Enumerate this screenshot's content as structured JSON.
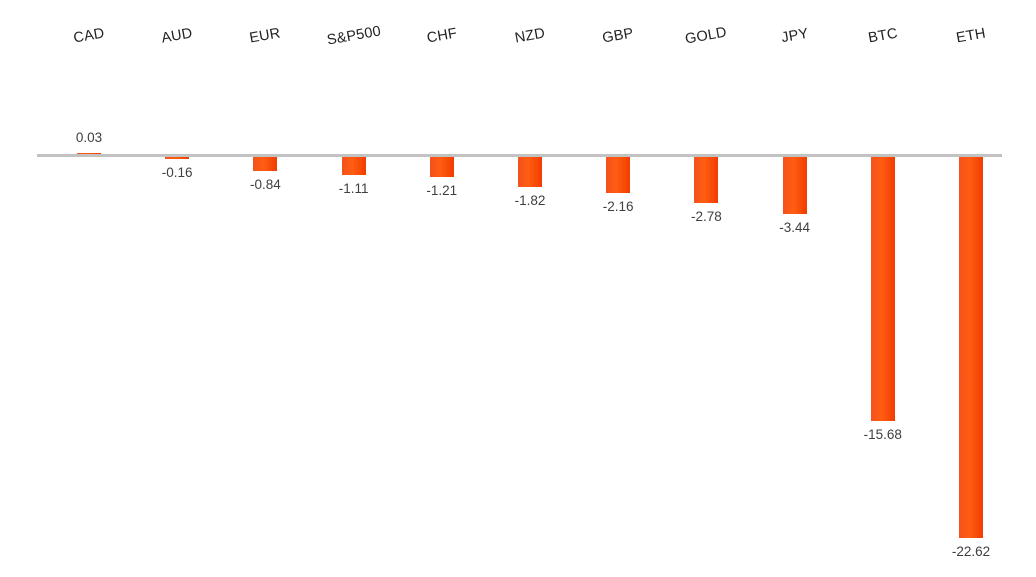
{
  "chart_data": {
    "type": "bar",
    "categories": [
      "CAD",
      "AUD",
      "EUR",
      "S&P500",
      "CHF",
      "NZD",
      "GBP",
      "GOLD",
      "JPY",
      "BTC",
      "ETH"
    ],
    "values": [
      0.03,
      -0.16,
      -0.84,
      -1.11,
      -1.21,
      -1.82,
      -2.16,
      -2.78,
      -3.44,
      -15.68,
      -22.62
    ],
    "data_labels": [
      "0.03",
      "-0.16",
      "-0.84",
      "-1.11",
      "-1.21",
      "-1.82",
      "-2.16",
      "-2.78",
      "-3.44",
      "-15.68",
      "-22.62"
    ],
    "title": "",
    "xlabel": "",
    "ylabel": "",
    "ylim": [
      -23.5,
      1
    ],
    "grid": false,
    "legend": "none",
    "category_axis_position": "top",
    "category_label_rotation_deg": -10,
    "colors": {
      "bar_gradient": [
        "#f4511d",
        "#ff5d12",
        "#f03c00"
      ],
      "baseline": "#c2c2c2",
      "category_label": "#212121",
      "value_label": "#3f3f3f",
      "background": "#ffffff"
    }
  }
}
